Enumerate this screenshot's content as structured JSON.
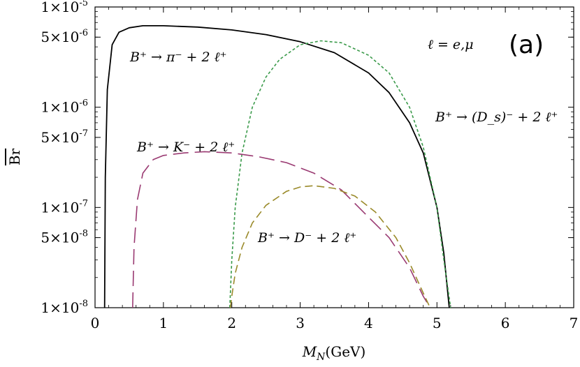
{
  "chart_data": {
    "type": "line",
    "title": "",
    "xlabel": "M_N(GeV)",
    "ylabel": "Br",
    "x_range": [
      0,
      7
    ],
    "y_range": [
      1e-08,
      1e-05
    ],
    "y_scale": "log",
    "grid": false,
    "x_ticks": [
      "0",
      "1",
      "2",
      "3",
      "4",
      "5",
      "6",
      "7"
    ],
    "y_ticks": [
      {
        "value": 1e-05,
        "mantissa": "1",
        "exponent": "-5"
      },
      {
        "value": 5e-06,
        "mantissa": "5",
        "exponent": "-6"
      },
      {
        "value": 1e-06,
        "mantissa": "1",
        "exponent": "-6"
      },
      {
        "value": 5e-07,
        "mantissa": "5",
        "exponent": "-7"
      },
      {
        "value": 1e-07,
        "mantissa": "1",
        "exponent": "-7"
      },
      {
        "value": 5e-08,
        "mantissa": "5",
        "exponent": "-8"
      },
      {
        "value": 1e-08,
        "mantissa": "1",
        "exponent": "-8"
      }
    ],
    "panel_label": "(a)",
    "lepton_note": "ℓ = e,μ",
    "series": [
      {
        "name": "B⁺ → π⁻ + 2 ℓ⁺",
        "color": "#000000",
        "dash": "solid",
        "x": [
          0.14,
          0.15,
          0.18,
          0.25,
          0.35,
          0.5,
          0.7,
          0.85,
          1.0,
          1.5,
          2.0,
          2.5,
          3.0,
          3.5,
          4.0,
          4.3,
          4.6,
          4.8,
          5.0,
          5.1,
          5.18
        ],
        "y": [
          1e-08,
          2e-07,
          1.5e-06,
          4.2e-06,
          5.6e-06,
          6.2e-06,
          6.5e-06,
          6.5e-06,
          6.5e-06,
          6.3e-06,
          5.9e-06,
          5.3e-06,
          4.5e-06,
          3.5e-06,
          2.2e-06,
          1.4e-06,
          7e-07,
          3.5e-07,
          1e-07,
          3.5e-08,
          1e-08
        ]
      },
      {
        "name": "B⁺ → (D_s)⁻ + 2 ℓ⁺",
        "color": "#3a9a4a",
        "dash": "short",
        "x": [
          1.97,
          2.0,
          2.05,
          2.15,
          2.3,
          2.5,
          2.7,
          3.0,
          3.3,
          3.6,
          4.0,
          4.3,
          4.6,
          4.8,
          5.0,
          5.1,
          5.2
        ],
        "y": [
          1e-08,
          3e-08,
          1e-07,
          3.5e-07,
          1e-06,
          2e-06,
          3e-06,
          4.2e-06,
          4.6e-06,
          4.4e-06,
          3.3e-06,
          2.2e-06,
          1e-06,
          4e-07,
          1e-07,
          3e-08,
          1e-08
        ]
      },
      {
        "name": "B⁺ → K⁻ + 2 ℓ⁺",
        "color": "#9a3a72",
        "dash": "long",
        "x": [
          0.55,
          0.57,
          0.62,
          0.7,
          0.85,
          1.0,
          1.3,
          1.6,
          2.0,
          2.4,
          2.8,
          3.2,
          3.6,
          4.0,
          4.3,
          4.6,
          4.8,
          4.9
        ],
        "y": [
          1e-08,
          4e-08,
          1.2e-07,
          2.2e-07,
          3e-07,
          3.3e-07,
          3.5e-07,
          3.6e-07,
          3.5e-07,
          3.2e-07,
          2.8e-07,
          2.2e-07,
          1.5e-07,
          8e-08,
          5e-08,
          2.5e-08,
          1.3e-08,
          1e-08
        ]
      },
      {
        "name": "B⁺ → D⁻ + 2 ℓ⁺",
        "color": "#9a8a2a",
        "dash": "medium",
        "x": [
          1.98,
          2.0,
          2.05,
          2.15,
          2.3,
          2.5,
          2.8,
          3.0,
          3.2,
          3.5,
          3.8,
          4.1,
          4.4,
          4.6,
          4.8,
          4.9
        ],
        "y": [
          1e-08,
          1.3e-08,
          2.2e-08,
          4e-08,
          7e-08,
          1.05e-07,
          1.45e-07,
          1.6e-07,
          1.65e-07,
          1.55e-07,
          1.3e-07,
          9e-08,
          5e-08,
          2.8e-08,
          1.4e-08,
          1e-08
        ]
      }
    ]
  }
}
